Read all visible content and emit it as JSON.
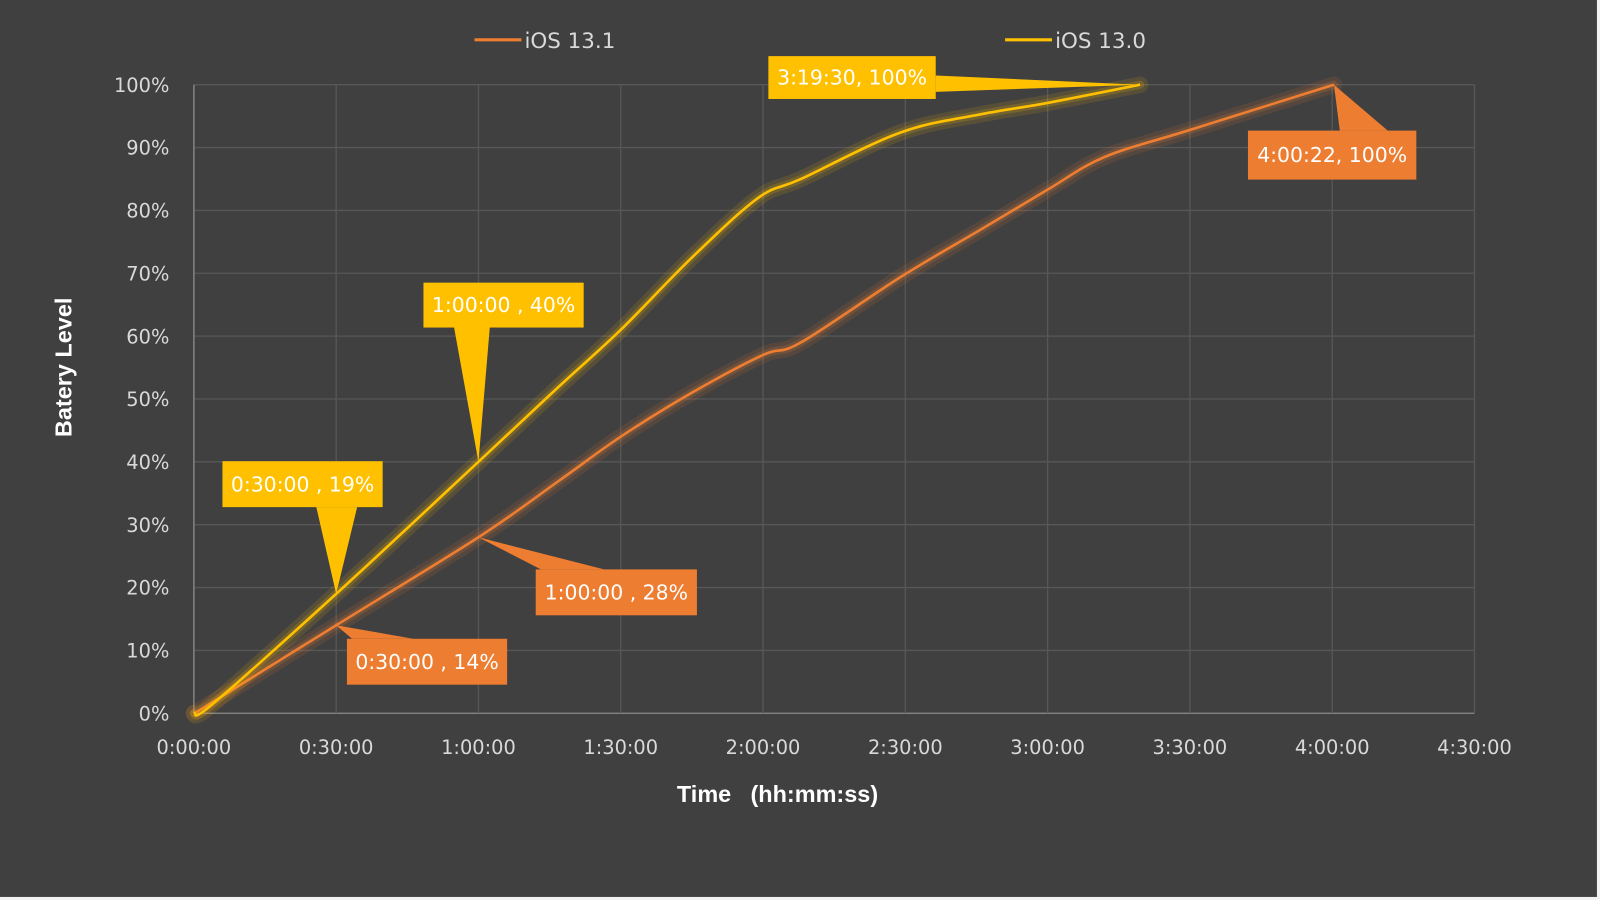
{
  "chart_data": {
    "type": "line",
    "title": "",
    "xlabel": "Time",
    "xlabel_unit": "(hh:mm:ss)",
    "ylabel": "Batery Level",
    "x_ticks": [
      "0:00:00",
      "0:30:00",
      "1:00:00",
      "1:30:00",
      "2:00:00",
      "2:30:00",
      "3:00:00",
      "3:30:00",
      "4:00:00",
      "4:30:00"
    ],
    "y_ticks": [
      "0%",
      "10%",
      "20%",
      "30%",
      "40%",
      "50%",
      "60%",
      "70%",
      "80%",
      "90%",
      "100%"
    ],
    "xlim_minutes": [
      0,
      270
    ],
    "ylim": [
      0,
      100
    ],
    "grid": true,
    "legend_placement": "top",
    "background": "#404040",
    "series": [
      {
        "name": "iOS 13.1",
        "color": "#ED7D31",
        "points_minutes_percent": [
          [
            0,
            0
          ],
          [
            4,
            1.8
          ],
          [
            30,
            14
          ],
          [
            60,
            28
          ],
          [
            77,
            37
          ],
          [
            90,
            44
          ],
          [
            105,
            51
          ],
          [
            120,
            57
          ],
          [
            128,
            59
          ],
          [
            149,
            69.4
          ],
          [
            166,
            77
          ],
          [
            180,
            83.3
          ],
          [
            192,
            88.5
          ],
          [
            210,
            92.8
          ],
          [
            240.37,
            100
          ]
        ]
      },
      {
        "name": "iOS 13.0",
        "color": "#FFC000",
        "points_minutes_percent": [
          [
            0,
            0
          ],
          [
            4,
            1.5
          ],
          [
            30,
            19
          ],
          [
            60,
            40
          ],
          [
            77,
            52
          ],
          [
            90,
            61
          ],
          [
            105,
            72.5
          ],
          [
            119,
            82
          ],
          [
            128,
            85
          ],
          [
            149,
            92.4
          ],
          [
            166,
            95.3
          ],
          [
            180,
            97.1
          ],
          [
            199.5,
            100
          ]
        ]
      }
    ],
    "annotations": [
      {
        "series": "iOS 13.0",
        "x_minutes": 30,
        "y": 19,
        "text": "0:30:00 , 19%"
      },
      {
        "series": "iOS 13.0",
        "x_minutes": 60,
        "y": 40,
        "text": "1:00:00 , 40%"
      },
      {
        "series": "iOS 13.0",
        "x_minutes": 199.5,
        "y": 100,
        "text": "3:19:30, 100%"
      },
      {
        "series": "iOS 13.1",
        "x_minutes": 240.37,
        "y": 100,
        "text": "4:00:22, 100%"
      },
      {
        "series": "iOS 13.1",
        "x_minutes": 60,
        "y": 28,
        "text": "1:00:00 , 28%"
      },
      {
        "series": "iOS 13.1",
        "x_minutes": 30,
        "y": 14,
        "text": "0:30:00 , 14%"
      }
    ]
  }
}
